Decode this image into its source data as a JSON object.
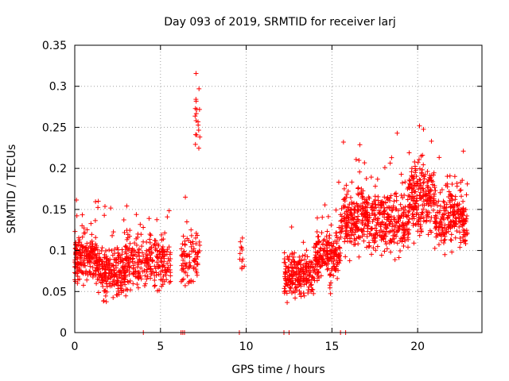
{
  "chart_data": {
    "type": "scatter",
    "title": "Day 093 of 2019, SRMTID for receiver larj",
    "xlabel": "GPS time / hours",
    "ylabel": "SRMTID / TECUs",
    "xlim": [
      0,
      23.75
    ],
    "ylim": [
      0,
      0.35
    ],
    "grid": true,
    "marker": "+",
    "color": "#ff0000",
    "x_ticks": [
      0,
      5,
      10,
      15,
      20
    ],
    "x_tick_labels": [
      "0",
      "5",
      "10",
      "15",
      "20"
    ],
    "y_ticks": [
      0,
      0.05,
      0.1,
      0.15,
      0.2,
      0.25,
      0.3,
      0.35
    ],
    "y_tick_labels": [
      "0",
      "0.05",
      "0.1",
      "0.15",
      "0.2",
      "0.25",
      "0.3",
      "0.35"
    ],
    "zero_markers_x": [
      4.0,
      6.2,
      6.3,
      6.4,
      9.6,
      12.2,
      12.5,
      15.5,
      15.8
    ],
    "clusters": [
      {
        "x_start": 0.0,
        "x_end": 1.5,
        "y_center": 0.09,
        "y_spread": 0.03,
        "count": 220
      },
      {
        "x_start": 1.5,
        "x_end": 3.0,
        "y_center": 0.075,
        "y_spread": 0.03,
        "count": 200
      },
      {
        "x_start": 3.0,
        "x_end": 5.6,
        "y_center": 0.085,
        "y_spread": 0.03,
        "count": 260
      },
      {
        "x_start": 6.2,
        "x_end": 7.3,
        "y_center": 0.09,
        "y_spread": 0.025,
        "count": 90
      },
      {
        "x_start": 7.0,
        "x_end": 7.3,
        "y_center": 0.26,
        "y_spread": 0.04,
        "count": 18
      },
      {
        "x_start": 9.6,
        "x_end": 9.9,
        "y_center": 0.09,
        "y_spread": 0.025,
        "count": 12
      },
      {
        "x_start": 12.2,
        "x_end": 14.0,
        "y_center": 0.07,
        "y_spread": 0.025,
        "count": 220
      },
      {
        "x_start": 14.0,
        "x_end": 15.5,
        "y_center": 0.095,
        "y_spread": 0.03,
        "count": 200
      },
      {
        "x_start": 15.5,
        "x_end": 17.0,
        "y_center": 0.14,
        "y_spread": 0.035,
        "count": 200
      },
      {
        "x_start": 17.0,
        "x_end": 19.5,
        "y_center": 0.135,
        "y_spread": 0.035,
        "count": 300
      },
      {
        "x_start": 19.5,
        "x_end": 21.0,
        "y_center": 0.165,
        "y_spread": 0.04,
        "count": 220
      },
      {
        "x_start": 21.0,
        "x_end": 22.9,
        "y_center": 0.14,
        "y_spread": 0.035,
        "count": 230
      }
    ]
  }
}
